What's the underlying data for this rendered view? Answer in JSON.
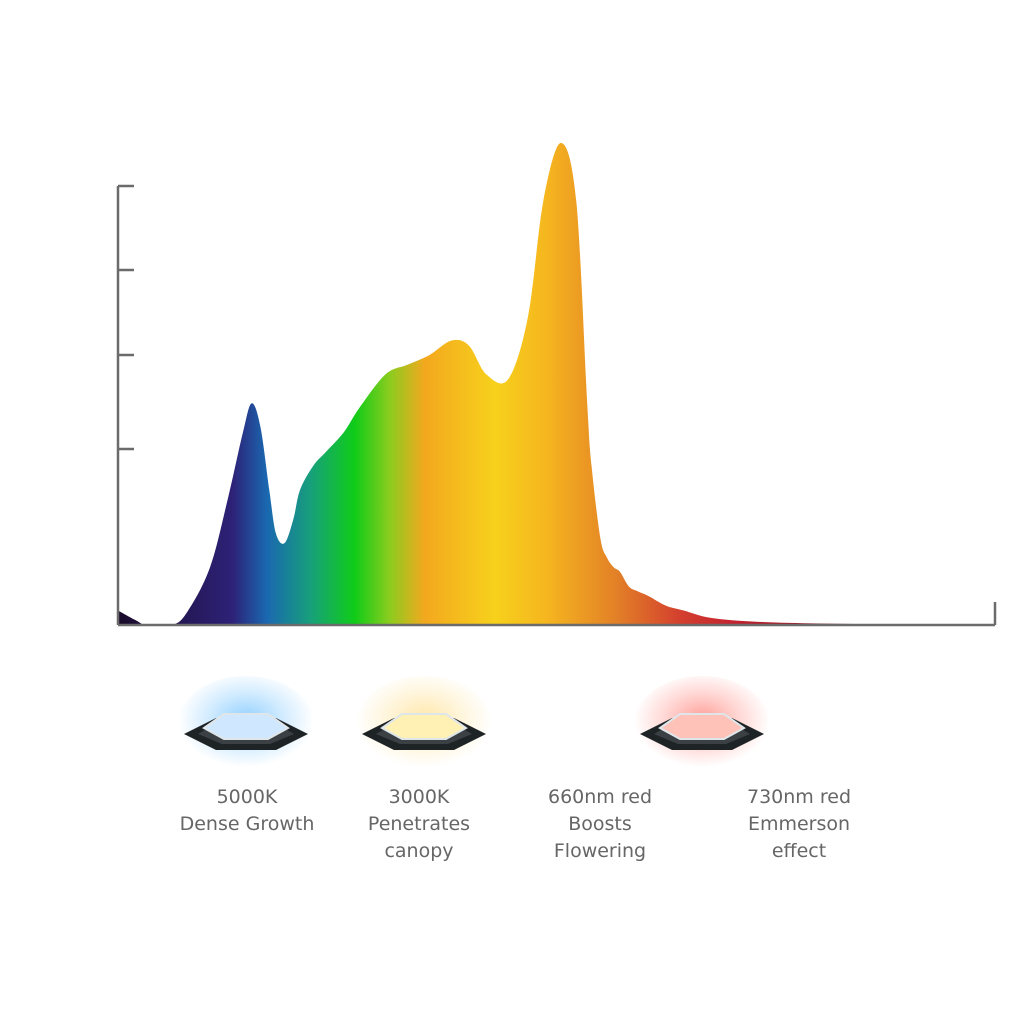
{
  "chart_data": {
    "type": "area",
    "title": "",
    "xlabel": "",
    "ylabel": "",
    "xlim": [
      380,
      780
    ],
    "ylim": [
      0,
      1
    ],
    "y_ticks": [
      0.2,
      0.4,
      0.6,
      0.8
    ],
    "grid": false,
    "legend": "none",
    "series": [
      {
        "x": [
          380,
          388,
          393,
          405,
          412,
          422,
          430,
          437,
          441,
          445,
          449,
          452,
          456,
          460,
          463,
          469,
          475,
          483,
          490,
          502,
          512,
          522,
          532,
          540,
          548,
          558,
          567,
          574,
          582,
          589,
          594,
          596,
          600,
          603,
          606,
          609,
          613,
          617,
          622,
          630,
          638,
          650,
          670,
          700,
          740,
          780
        ],
        "y": [
          0.03,
          0.01,
          0.0,
          0.0,
          0.03,
          0.12,
          0.26,
          0.4,
          0.46,
          0.41,
          0.28,
          0.19,
          0.17,
          0.22,
          0.28,
          0.33,
          0.36,
          0.4,
          0.45,
          0.52,
          0.54,
          0.56,
          0.59,
          0.58,
          0.52,
          0.51,
          0.64,
          0.88,
          1.0,
          0.88,
          0.46,
          0.33,
          0.18,
          0.14,
          0.12,
          0.11,
          0.08,
          0.07,
          0.06,
          0.04,
          0.03,
          0.015,
          0.007,
          0.003,
          0.001,
          0.0
        ]
      }
    ]
  },
  "colors": {
    "axis": "#6b6b6b",
    "caption": "#666666",
    "spectrum_stops": [
      "#1a0b2a",
      "#2d2177",
      "#1a68b0",
      "#17a07a",
      "#10cc18",
      "#8ccc1e",
      "#f3a81e",
      "#f7d11c",
      "#f5b51f",
      "#e27f27",
      "#d4402e",
      "#c42330",
      "#a51a26",
      "#6a0e16",
      "#3b090f"
    ]
  },
  "leds": [
    {
      "icon": "led-5000k-icon",
      "glow": "#7fc8ff",
      "face": "#cfe8ff",
      "lines": [
        "5000K",
        "Dense Growth"
      ]
    },
    {
      "icon": "led-3000k-icon",
      "glow": "#ffe39a",
      "face": "#fff0b4",
      "lines": [
        "3000K",
        "Penetrates",
        "canopy"
      ]
    },
    {
      "icon": "none",
      "glow": "",
      "face": "",
      "lines": [
        "660nm red",
        "Boosts",
        "Flowering"
      ]
    },
    {
      "icon": "led-730nm-icon",
      "glow": "#ff8e86",
      "face": "#ffc2b8",
      "lines": [
        "730nm red",
        "Emmerson",
        "effect"
      ]
    }
  ]
}
